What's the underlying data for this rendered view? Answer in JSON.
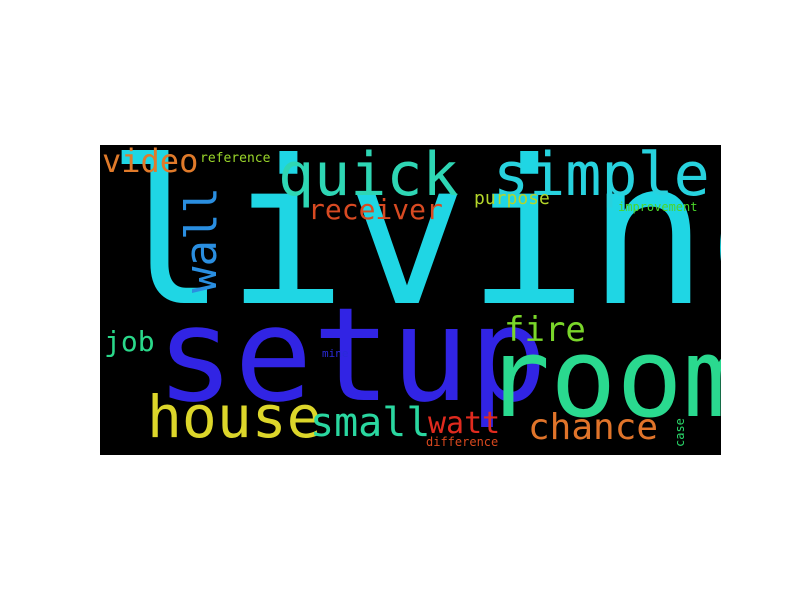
{
  "background_color": "#000000",
  "words": [
    {
      "text": "living",
      "color": "#1fd6e4",
      "weight": 1.0
    },
    {
      "text": "setup",
      "color": "#3124e4",
      "weight": 0.72
    },
    {
      "text": "room",
      "color": "#2ad98f",
      "weight": 0.68
    },
    {
      "text": "quick",
      "color": "#2ed6b4",
      "weight": 0.5
    },
    {
      "text": "simple",
      "color": "#27d2de",
      "weight": 0.5
    },
    {
      "text": "house",
      "color": "#dcd62a",
      "weight": 0.45
    },
    {
      "text": "wall",
      "color": "#2a8ee0",
      "weight": 0.4
    },
    {
      "text": "small",
      "color": "#2ad7a0",
      "weight": 0.38
    },
    {
      "text": "chance",
      "color": "#e0742a",
      "weight": 0.33
    },
    {
      "text": "fire",
      "color": "#7ad62a",
      "weight": 0.32
    },
    {
      "text": "video",
      "color": "#e07a2a",
      "weight": 0.3
    },
    {
      "text": "receiver",
      "color": "#d84a22",
      "weight": 0.27
    },
    {
      "text": "watt",
      "color": "#e02a1e",
      "weight": 0.27
    },
    {
      "text": "job",
      "color": "#2ad88a",
      "weight": 0.26
    },
    {
      "text": "purpose",
      "color": "#b4d62a",
      "weight": 0.18
    },
    {
      "text": "reference",
      "color": "#9ad62a",
      "weight": 0.12
    },
    {
      "text": "improvement",
      "color": "#4ad62a",
      "weight": 0.11
    },
    {
      "text": "difference",
      "color": "#d8481e",
      "weight": 0.1
    },
    {
      "text": "mine",
      "color": "#2a2ad8",
      "weight": 0.09
    },
    {
      "text": "case",
      "color": "#2ad86a",
      "weight": 0.09
    }
  ]
}
